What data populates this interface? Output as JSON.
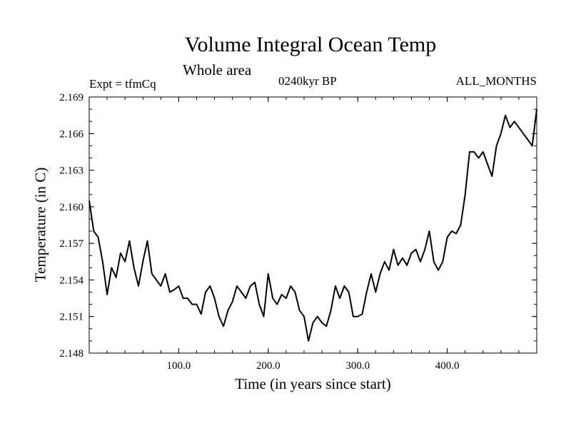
{
  "chart_data": {
    "type": "line",
    "title": "Volume Integral Ocean Temp",
    "subtitle": "Whole area",
    "left_caption": "Expt = tfmCq",
    "center_caption": "0240kyr BP",
    "right_caption": "ALL_MONTHS",
    "xlabel": "Time (in years since start)",
    "ylabel": "Temperature (in C)",
    "xlim": [
      0,
      500
    ],
    "ylim": [
      2.148,
      2.169
    ],
    "xticks": [
      100,
      200,
      300,
      400
    ],
    "xtick_labels": [
      "100.0",
      "200.0",
      "300.0",
      "400.0"
    ],
    "yticks": [
      2.148,
      2.151,
      2.154,
      2.157,
      2.16,
      2.163,
      2.166,
      2.169
    ],
    "ytick_labels": [
      "2.148",
      "2.151",
      "2.154",
      "2.157",
      "2.160",
      "2.163",
      "2.166",
      "2.169"
    ],
    "grid": false,
    "series": [
      {
        "x": [
          0,
          5,
          10,
          15,
          20,
          25,
          30,
          35,
          40,
          45,
          50,
          55,
          60,
          65,
          70,
          75,
          80,
          85,
          90,
          95,
          100,
          105,
          110,
          115,
          120,
          125,
          130,
          135,
          140,
          145,
          150,
          155,
          160,
          165,
          170,
          175,
          180,
          185,
          190,
          195,
          200,
          205,
          210,
          215,
          220,
          225,
          230,
          235,
          240,
          245,
          250,
          255,
          260,
          265,
          270,
          275,
          280,
          285,
          290,
          295,
          300,
          305,
          310,
          315,
          320,
          325,
          330,
          335,
          340,
          345,
          350,
          355,
          360,
          365,
          370,
          375,
          380,
          385,
          390,
          395,
          400,
          405,
          410,
          415,
          420,
          425,
          430,
          435,
          440,
          445,
          450,
          455,
          460,
          465,
          470,
          475,
          480,
          485,
          490,
          495,
          500
        ],
        "values": [
          2.1605,
          2.158,
          2.1575,
          2.1555,
          2.1528,
          2.155,
          2.1542,
          2.1562,
          2.1555,
          2.1572,
          2.155,
          2.1535,
          2.1555,
          2.1572,
          2.1545,
          2.154,
          2.1535,
          2.1545,
          2.153,
          2.1532,
          2.1535,
          2.1525,
          2.1525,
          2.152,
          2.152,
          2.1512,
          2.153,
          2.1535,
          2.1525,
          2.151,
          2.1502,
          2.1515,
          2.1522,
          2.1535,
          2.153,
          2.1525,
          2.1535,
          2.1538,
          2.152,
          2.151,
          2.1545,
          2.1525,
          2.152,
          2.1528,
          2.1525,
          2.1535,
          2.153,
          2.1515,
          2.151,
          2.149,
          2.1505,
          2.151,
          2.1505,
          2.1502,
          2.1515,
          2.1535,
          2.1525,
          2.1535,
          2.153,
          2.151,
          2.151,
          2.1512,
          2.153,
          2.1545,
          2.153,
          2.1545,
          2.1555,
          2.1548,
          2.1565,
          2.1552,
          2.1558,
          2.1552,
          2.1562,
          2.1565,
          2.1555,
          2.1565,
          2.158,
          2.1555,
          2.1548,
          2.1555,
          2.1575,
          2.158,
          2.1578,
          2.1585,
          2.161,
          2.1645,
          2.1645,
          2.164,
          2.1645,
          2.1635,
          2.1625,
          2.165,
          2.166,
          2.1675,
          2.1665,
          2.167,
          2.1665,
          2.166,
          2.1655,
          2.165,
          2.168
        ]
      }
    ]
  }
}
